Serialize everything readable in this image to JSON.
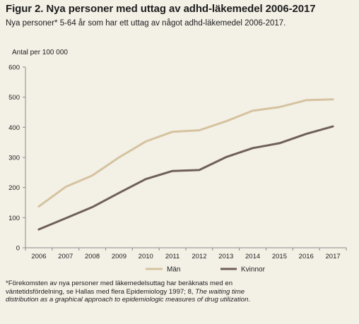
{
  "header": {
    "title": "Figur 2. Nya personer med uttag av adhd-läkemedel 2006-2017",
    "subtitle": "Nya personer* 5-64 år som har ett uttag av något adhd-läkemedel 2006-2017."
  },
  "chart_data": {
    "type": "line",
    "ylabel": "Antal per 100 000",
    "x": [
      "2006",
      "2007",
      "2008",
      "2009",
      "2010",
      "2011",
      "2012",
      "2013",
      "2014",
      "2015",
      "2016",
      "2017"
    ],
    "ylim": [
      0,
      600
    ],
    "yticks": [
      "0",
      "100",
      "200",
      "300",
      "400",
      "500",
      "600"
    ],
    "grid": false,
    "legend_position": "bottom",
    "series": [
      {
        "name": "Män",
        "color": "#d5c39f",
        "values": [
          137,
          202,
          240,
          300,
          353,
          385,
          390,
          420,
          455,
          467,
          490,
          493
        ]
      },
      {
        "name": "Kvinnor",
        "color": "#6f6058",
        "values": [
          61,
          98,
          135,
          182,
          228,
          255,
          258,
          301,
          331,
          347,
          378,
          403
        ]
      }
    ]
  },
  "footnote": {
    "part1": "*Förekomsten av nya personer med läkemedelsuttag har beräknats med en väntetidsfördelning, se Hallas med flera Epidemiology 1997; 8, ",
    "part2_italic": "The waiting time distribution as a graphical approach to epidemiologic measures of drug utilization",
    "part3": "."
  }
}
